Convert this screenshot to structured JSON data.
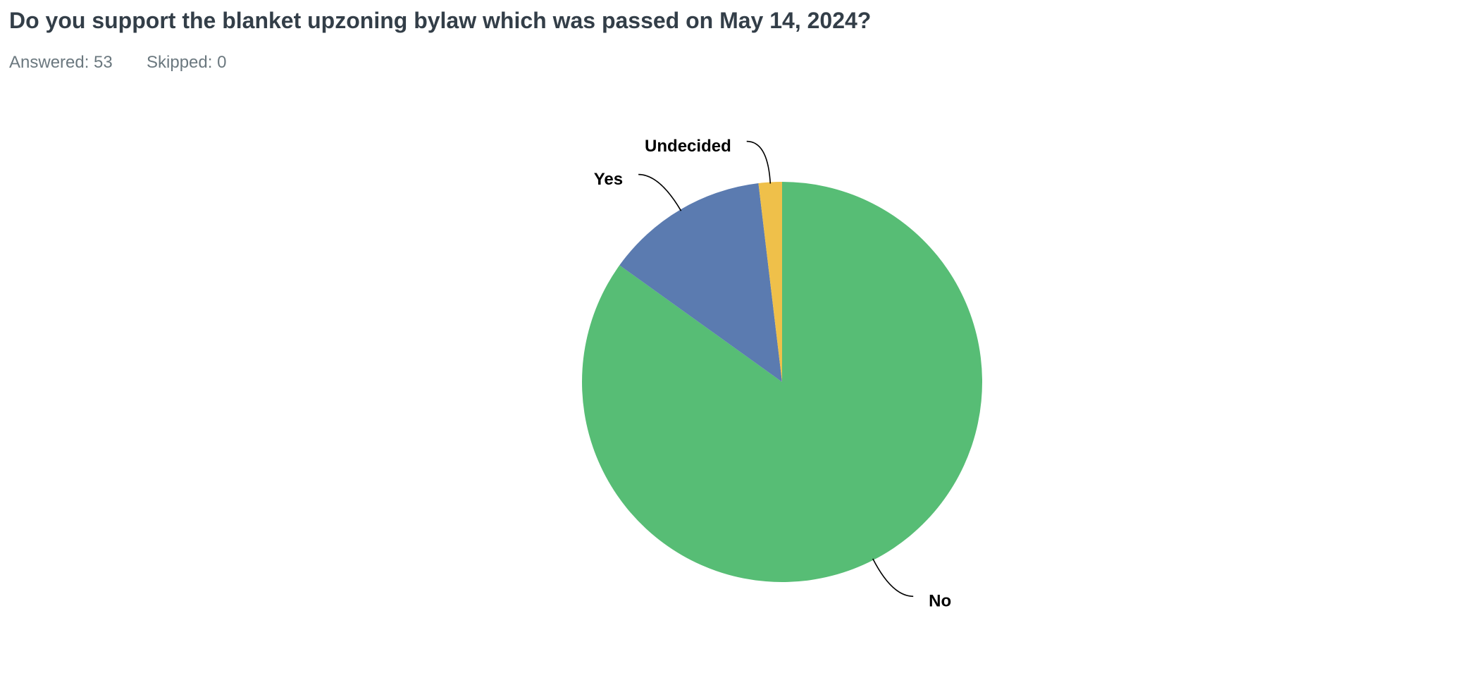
{
  "chart_data": {
    "type": "pie",
    "title": "Do you support the blanket upzoning bylaw which was passed on May 14, 2024?",
    "answered": "Answered: 53",
    "skipped": "Skipped: 0",
    "categories": [
      "No",
      "Yes",
      "Undecided"
    ],
    "values": [
      45,
      7,
      1
    ],
    "colors": [
      "#57bd75",
      "#5b7bb0",
      "#efc04a"
    ]
  }
}
